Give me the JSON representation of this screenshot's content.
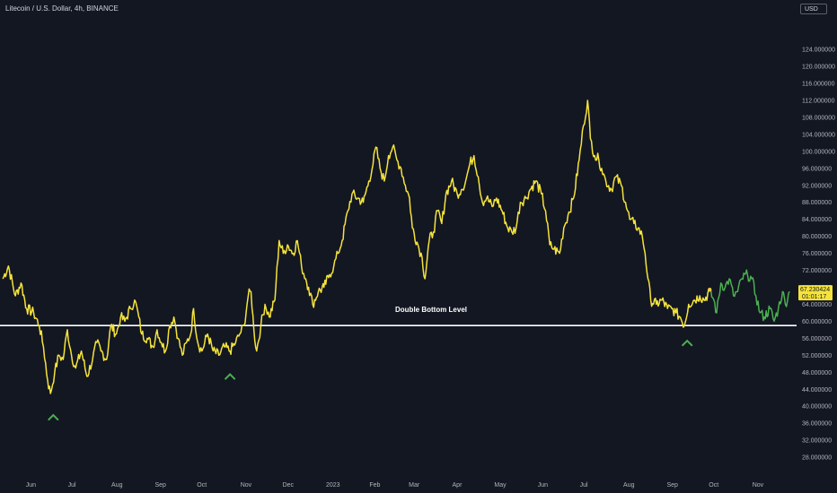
{
  "header": {
    "title": "Litecoin / U.S. Dollar, 4h, BINANCE",
    "currency": "USD"
  },
  "price_badge": {
    "price": "67.230424",
    "countdown": "01:01:17"
  },
  "chart_data": {
    "type": "line",
    "y_axis_ticks": [
      "28.000000",
      "32.000000",
      "36.000000",
      "40.000000",
      "44.000000",
      "48.000000",
      "52.000000",
      "56.000000",
      "60.000000",
      "64.000000",
      "68.000000",
      "72.000000",
      "76.000000",
      "80.000000",
      "84.000000",
      "88.000000",
      "92.000000",
      "96.000000",
      "100.000000",
      "104.000000",
      "108.000000",
      "112.000000",
      "116.000000",
      "120.000000",
      "124.000000"
    ],
    "ylim": [
      25.7,
      129.4
    ],
    "x_axis_labels": [
      "Jun",
      "Jul",
      "Aug",
      "Sep",
      "Oct",
      "Nov",
      "Dec",
      "2023",
      "Feb",
      "Mar",
      "Apr",
      "May",
      "Jun",
      "Jul",
      "Aug",
      "Sep",
      "Oct",
      "Nov"
    ],
    "series": [
      {
        "color": "#f5e33c",
        "points": [
          [
            "2022-05-13",
            70
          ],
          [
            "2022-05-17",
            73
          ],
          [
            "2022-05-22",
            66
          ],
          [
            "2022-05-26",
            69
          ],
          [
            "2022-05-30",
            63
          ],
          [
            "2022-06-04",
            62
          ],
          [
            "2022-06-08",
            59
          ],
          [
            "2022-06-11",
            54
          ],
          [
            "2022-06-14",
            46
          ],
          [
            "2022-06-16",
            43
          ],
          [
            "2022-06-19",
            48
          ],
          [
            "2022-06-22",
            52
          ],
          [
            "2022-06-25",
            51
          ],
          [
            "2022-06-28",
            58
          ],
          [
            "2022-07-01",
            52
          ],
          [
            "2022-07-04",
            49
          ],
          [
            "2022-07-08",
            53
          ],
          [
            "2022-07-12",
            47
          ],
          [
            "2022-07-16",
            51
          ],
          [
            "2022-07-19",
            55
          ],
          [
            "2022-07-22",
            53
          ],
          [
            "2022-07-26",
            51
          ],
          [
            "2022-07-29",
            59
          ],
          [
            "2022-08-02",
            57
          ],
          [
            "2022-08-05",
            61
          ],
          [
            "2022-08-08",
            60
          ],
          [
            "2022-08-12",
            63
          ],
          [
            "2022-08-15",
            65
          ],
          [
            "2022-08-18",
            61
          ],
          [
            "2022-08-20",
            57
          ],
          [
            "2022-08-24",
            56
          ],
          [
            "2022-08-28",
            54
          ],
          [
            "2022-08-31",
            58
          ],
          [
            "2022-09-03",
            55
          ],
          [
            "2022-09-06",
            53
          ],
          [
            "2022-09-09",
            59
          ],
          [
            "2022-09-12",
            61
          ],
          [
            "2022-09-15",
            56
          ],
          [
            "2022-09-18",
            52
          ],
          [
            "2022-09-21",
            55
          ],
          [
            "2022-09-24",
            57
          ],
          [
            "2022-09-26",
            63
          ],
          [
            "2022-09-29",
            55
          ],
          [
            "2022-10-02",
            53
          ],
          [
            "2022-10-06",
            57
          ],
          [
            "2022-10-10",
            53
          ],
          [
            "2022-10-14",
            52
          ],
          [
            "2022-10-18",
            54
          ],
          [
            "2022-10-22",
            53
          ],
          [
            "2022-10-26",
            55
          ],
          [
            "2022-10-29",
            57
          ],
          [
            "2022-11-01",
            59
          ],
          [
            "2022-11-04",
            66
          ],
          [
            "2022-11-06",
            67
          ],
          [
            "2022-11-08",
            58
          ],
          [
            "2022-11-10",
            53
          ],
          [
            "2022-11-13",
            59
          ],
          [
            "2022-11-16",
            64
          ],
          [
            "2022-11-19",
            61
          ],
          [
            "2022-11-23",
            65
          ],
          [
            "2022-11-26",
            79
          ],
          [
            "2022-11-29",
            76
          ],
          [
            "2022-12-02",
            78
          ],
          [
            "2022-12-06",
            76
          ],
          [
            "2022-12-09",
            79
          ],
          [
            "2022-12-12",
            73
          ],
          [
            "2022-12-15",
            70
          ],
          [
            "2022-12-17",
            68
          ],
          [
            "2022-12-20",
            64
          ],
          [
            "2022-12-24",
            67
          ],
          [
            "2022-12-28",
            68
          ],
          [
            "2023-01-01",
            71
          ],
          [
            "2023-01-04",
            73
          ],
          [
            "2023-01-07",
            76
          ],
          [
            "2023-01-10",
            79
          ],
          [
            "2023-01-14",
            86
          ],
          [
            "2023-01-17",
            90
          ],
          [
            "2023-01-21",
            89
          ],
          [
            "2023-01-25",
            88
          ],
          [
            "2023-01-29",
            93
          ],
          [
            "2023-02-01",
            97
          ],
          [
            "2023-02-03",
            101
          ],
          [
            "2023-02-06",
            96
          ],
          [
            "2023-02-09",
            93
          ],
          [
            "2023-02-12",
            99
          ],
          [
            "2023-02-15",
            101
          ],
          [
            "2023-02-18",
            98
          ],
          [
            "2023-02-21",
            96
          ],
          [
            "2023-02-24",
            92
          ],
          [
            "2023-02-27",
            89
          ],
          [
            "2023-03-01",
            82
          ],
          [
            "2023-03-05",
            78
          ],
          [
            "2023-03-08",
            75
          ],
          [
            "2023-03-10",
            70
          ],
          [
            "2023-03-13",
            79
          ],
          [
            "2023-03-16",
            81
          ],
          [
            "2023-03-19",
            86
          ],
          [
            "2023-03-22",
            83
          ],
          [
            "2023-03-25",
            90
          ],
          [
            "2023-03-29",
            93
          ],
          [
            "2023-04-02",
            90
          ],
          [
            "2023-04-05",
            91
          ],
          [
            "2023-04-08",
            93
          ],
          [
            "2023-04-11",
            97
          ],
          [
            "2023-04-14",
            99
          ],
          [
            "2023-04-17",
            94
          ],
          [
            "2023-04-20",
            88
          ],
          [
            "2023-04-23",
            89
          ],
          [
            "2023-04-27",
            87
          ],
          [
            "2023-04-30",
            89
          ],
          [
            "2023-05-04",
            86
          ],
          [
            "2023-05-08",
            82
          ],
          [
            "2023-05-11",
            81
          ],
          [
            "2023-05-14",
            82
          ],
          [
            "2023-05-17",
            88
          ],
          [
            "2023-05-21",
            89
          ],
          [
            "2023-05-24",
            91
          ],
          [
            "2023-05-28",
            93
          ],
          [
            "2023-06-01",
            90
          ],
          [
            "2023-06-04",
            86
          ],
          [
            "2023-06-07",
            78
          ],
          [
            "2023-06-10",
            77
          ],
          [
            "2023-06-14",
            76
          ],
          [
            "2023-06-17",
            82
          ],
          [
            "2023-06-20",
            85
          ],
          [
            "2023-06-24",
            89
          ],
          [
            "2023-06-28",
            98
          ],
          [
            "2023-07-01",
            106
          ],
          [
            "2023-07-04",
            112
          ],
          [
            "2023-07-06",
            103
          ],
          [
            "2023-07-09",
            99
          ],
          [
            "2023-07-12",
            98
          ],
          [
            "2023-07-14",
            96
          ],
          [
            "2023-07-17",
            93
          ],
          [
            "2023-07-21",
            91
          ],
          [
            "2023-07-24",
            94
          ],
          [
            "2023-07-28",
            92
          ],
          [
            "2023-07-31",
            88
          ],
          [
            "2023-08-03",
            84
          ],
          [
            "2023-08-06",
            83
          ],
          [
            "2023-08-09",
            82
          ],
          [
            "2023-08-12",
            80
          ],
          [
            "2023-08-14",
            76
          ],
          [
            "2023-08-16",
            70
          ],
          [
            "2023-08-18",
            65
          ],
          [
            "2023-08-22",
            64
          ],
          [
            "2023-08-26",
            65
          ],
          [
            "2023-08-30",
            63
          ],
          [
            "2023-09-02",
            63
          ],
          [
            "2023-09-05",
            62
          ],
          [
            "2023-09-08",
            61
          ],
          [
            "2023-09-11",
            59
          ],
          [
            "2023-09-14",
            64
          ],
          [
            "2023-09-18",
            65
          ],
          [
            "2023-09-22",
            66
          ],
          [
            "2023-09-25",
            65
          ],
          [
            "2023-09-29",
            67
          ]
        ]
      },
      {
        "color": "#4caf50",
        "points": [
          [
            "2023-09-29",
            67
          ],
          [
            "2023-10-02",
            65
          ],
          [
            "2023-10-04",
            62
          ],
          [
            "2023-10-07",
            69
          ],
          [
            "2023-10-10",
            68
          ],
          [
            "2023-10-13",
            70
          ],
          [
            "2023-10-16",
            66
          ],
          [
            "2023-10-19",
            67
          ],
          [
            "2023-10-22",
            70
          ],
          [
            "2023-10-26",
            71
          ],
          [
            "2023-10-29",
            70
          ],
          [
            "2023-11-01",
            66
          ],
          [
            "2023-11-04",
            62
          ],
          [
            "2023-11-07",
            61
          ],
          [
            "2023-11-11",
            63
          ],
          [
            "2023-11-14",
            60
          ],
          [
            "2023-11-17",
            63
          ],
          [
            "2023-11-20",
            67
          ],
          [
            "2023-11-22",
            64
          ],
          [
            "2023-11-25",
            67
          ]
        ]
      }
    ],
    "reference_line": {
      "value": 59,
      "label": "Double Bottom Level",
      "color": "#ffffff"
    },
    "markers": [
      {
        "date": "2022-06-18",
        "value": 37.5,
        "shape": "chevron-up",
        "color": "#4caf50"
      },
      {
        "date": "2022-10-22",
        "value": 47.1,
        "shape": "chevron-up",
        "color": "#4caf50"
      },
      {
        "date": "2023-09-13",
        "value": 55.0,
        "shape": "chevron-up",
        "color": "#4caf50"
      }
    ],
    "background": "#131722",
    "grid": false
  }
}
